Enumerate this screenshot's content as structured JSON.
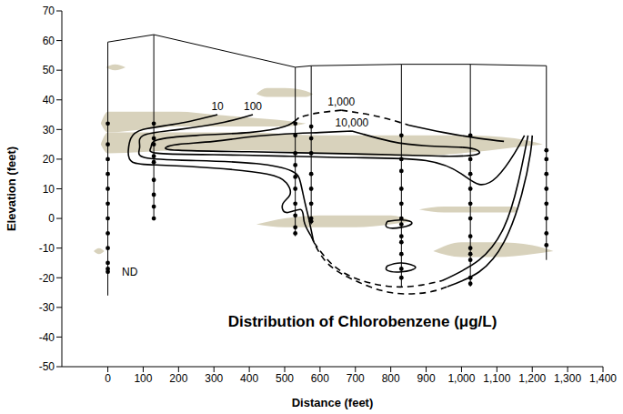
{
  "chart_data": {
    "type": "contour",
    "title": "Distribution of Chlorobenzene (μg/L)",
    "x_label": "Distance (feet)",
    "y_label": "Elevation (feet)",
    "xlim": [
      -130,
      1400
    ],
    "xticks": [
      0,
      100,
      200,
      300,
      400,
      500,
      600,
      700,
      800,
      900,
      {
        "value": 1000,
        "label": "1,000"
      },
      {
        "value": 1100,
        "label": "1,100"
      },
      {
        "value": 1200,
        "label": "1,200"
      },
      {
        "value": 1300,
        "label": "1,300"
      },
      {
        "value": 1400,
        "label": "1,400"
      }
    ],
    "ylim": [
      -50,
      70
    ],
    "yticks": [
      -50,
      -40,
      -30,
      -20,
      -10,
      0,
      10,
      20,
      30,
      40,
      50,
      60,
      70
    ],
    "grid": false,
    "color": "#000000",
    "boreholes": [
      {
        "x": 0,
        "top": 59.5,
        "bottom": -26,
        "samples": [
          32,
          25,
          20,
          15,
          10,
          5,
          0,
          -5,
          -10,
          -15,
          -17,
          -18
        ]
      },
      {
        "x": 130,
        "top": 62,
        "bottom": 0,
        "samples": [
          32,
          27,
          25,
          21,
          19,
          13,
          8,
          4,
          0
        ]
      },
      {
        "x": 530,
        "top": 51,
        "bottom": -6,
        "samples": [
          32,
          28,
          22,
          18,
          14,
          10,
          5,
          1,
          -3,
          -5
        ]
      },
      {
        "x": 575,
        "top": 51.5,
        "bottom": -2,
        "samples": [
          31,
          27,
          22,
          15,
          10,
          5,
          0,
          -1
        ]
      },
      {
        "x": 830,
        "top": 52,
        "bottom": -23,
        "samples": [
          28,
          20,
          16,
          10,
          5,
          0,
          -2,
          -6,
          -8,
          -12,
          -17,
          -20
        ]
      },
      {
        "x": 1025,
        "top": 52,
        "bottom": -23,
        "samples": [
          28,
          20,
          15,
          10,
          5,
          0,
          -6,
          -10,
          -12,
          -14,
          -20,
          -22
        ]
      },
      {
        "x": 1240,
        "top": 51.5,
        "bottom": -14,
        "samples": [
          23,
          20,
          15,
          10,
          5,
          0,
          -5,
          -9
        ]
      }
    ],
    "clay_lenses": {
      "color": "#d8d2bc",
      "shapes": [
        {
          "x": [
            -20,
            0,
            100,
            200,
            300,
            400,
            500,
            560
          ],
          "lower": [
            32,
            29,
            30,
            31,
            31,
            31,
            31,
            32
          ],
          "upper": [
            32,
            36,
            36,
            36,
            35,
            34,
            33,
            32
          ]
        },
        {
          "x": [
            -20,
            0,
            200,
            400,
            600,
            800,
            1000,
            1150,
            1230
          ],
          "lower": [
            25,
            22,
            23,
            23,
            22,
            21,
            22,
            24,
            25
          ],
          "upper": [
            25,
            29,
            29,
            29,
            28,
            28,
            28,
            27,
            25
          ]
        },
        {
          "x": [
            420,
            450,
            500,
            560,
            580
          ],
          "lower": [
            42,
            41,
            41,
            41,
            42
          ],
          "upper": [
            42,
            44,
            44,
            43,
            42
          ]
        },
        {
          "x": [
            -5,
            20,
            50
          ],
          "lower": [
            51,
            50,
            51
          ],
          "upper": [
            51,
            52,
            51
          ]
        },
        {
          "x": [
            420,
            500,
            600,
            700,
            800,
            860
          ],
          "lower": [
            -2,
            -3,
            -3,
            -3,
            -2,
            -1
          ],
          "upper": [
            -2,
            0,
            1,
            1,
            1,
            -1
          ]
        },
        {
          "x": [
            880,
            950,
            1050,
            1150,
            1160
          ],
          "lower": [
            3,
            2,
            2,
            2,
            3
          ],
          "upper": [
            3,
            4,
            4,
            4,
            3
          ]
        },
        {
          "x": [
            920,
            1000,
            1100,
            1200,
            1260
          ],
          "lower": [
            -11,
            -13,
            -13,
            -12,
            -11
          ],
          "upper": [
            -11,
            -8,
            -8,
            -9,
            -11
          ]
        },
        {
          "x": [
            -40,
            -25,
            -10
          ],
          "lower": [
            -11,
            -12,
            -11
          ],
          "upper": [
            -11,
            -10,
            -11
          ]
        }
      ]
    },
    "contours": [
      {
        "level": 10,
        "label": "10",
        "color": "#000000",
        "segments": [
          {
            "line_style": "solid",
            "x": [
              310,
              200,
              100,
              65,
              58,
              70,
              150,
              300,
              450,
              505,
              515,
              495,
              505,
              545,
              555,
              575
            ],
            "y": [
              35,
              32,
              30,
              27,
              23,
              19,
              18,
              17,
              15,
              12,
              8,
              5,
              2,
              3,
              -1,
              -6
            ]
          },
          {
            "line_style": "dashed",
            "x": [
              575,
              620,
              700,
              800,
              900,
              960
            ],
            "y": [
              -6,
              -15,
              -21,
              -25,
              -25,
              -23
            ]
          },
          {
            "line_style": "solid",
            "x": [
              960,
              1050,
              1120,
              1170,
              1195,
              1200
            ],
            "y": [
              -23,
              -18,
              -8,
              8,
              22,
              28
            ]
          },
          {
            "line_style": "solid",
            "x": [
              790,
              830,
              860,
              830,
              790,
              790
            ],
            "y": [
              -1,
              -0.5,
              -1.5,
              -3,
              -3,
              -1
            ]
          },
          {
            "line_style": "solid",
            "x": [
              790,
              830,
              870,
              830,
              790,
              790
            ],
            "y": [
              -16,
              -15,
              -16.5,
              -18,
              -17.5,
              -16
            ]
          }
        ]
      },
      {
        "level": 100,
        "label": "100",
        "color": "#000000",
        "segments": [
          {
            "line_style": "solid",
            "x": [
              410,
              330,
              200,
              100,
              90,
              105,
              250,
              420,
              520,
              545,
              558,
              568,
              582
            ],
            "y": [
              35,
              32.5,
              30,
              28,
              24,
              20.5,
              19.5,
              18.5,
              16,
              12,
              5,
              0,
              -8
            ]
          },
          {
            "line_style": "dashed",
            "x": [
              582,
              650,
              750,
              850,
              945
            ],
            "y": [
              -8,
              -17,
              -22,
              -23,
              -21
            ]
          },
          {
            "line_style": "solid",
            "x": [
              945,
              1050,
              1120,
              1160,
              1188
            ],
            "y": [
              -21,
              -14,
              -3,
              12,
              28
            ]
          }
        ]
      },
      {
        "level": 1000,
        "label": "1,000",
        "color": "#000000",
        "segments": [
          {
            "line_style": "dashed",
            "x": [
              660,
              760,
              850
            ],
            "y": [
              36.5,
              34.5,
              31.5
            ]
          },
          {
            "line_style": "dashed",
            "x": [
              660,
              590,
              540
            ],
            "y": [
              36.5,
              35.5,
              34
            ]
          },
          {
            "line_style": "solid",
            "x": [
              850,
              950,
              1050,
              1120
            ],
            "y": [
              31.5,
              29,
              27,
              26
            ]
          },
          {
            "line_style": "solid",
            "x": [
              540,
              500,
              400,
              250,
              140,
              122,
              140,
              300,
              500,
              700,
              900,
              1000,
              1050,
              1100,
              1150,
              1178
            ],
            "y": [
              34,
              31,
              29,
              28,
              26.5,
              24,
              22,
              21.5,
              21,
              20.5,
              19.5,
              15,
              11.5,
              14,
              22,
              28
            ]
          }
        ]
      },
      {
        "level": 10000,
        "label": "10,000",
        "color": "#000000",
        "segments": [
          {
            "line_style": "solid",
            "x": [
              690,
              600,
              500,
              400,
              300,
              200,
              165,
              200,
              400,
              600,
              800,
              950,
              1040,
              1045,
              1000,
              900,
              800,
              720,
              690
            ],
            "y": [
              29.5,
              29,
              28.5,
              27.5,
              26,
              25,
              24,
              23,
              22.5,
              22,
              21.5,
              21,
              21.5,
              23,
              24,
              24.5,
              26,
              28.5,
              29.5
            ]
          }
        ]
      }
    ],
    "annotations": [
      {
        "text": "ND",
        "x": 40,
        "y": -18
      }
    ]
  }
}
